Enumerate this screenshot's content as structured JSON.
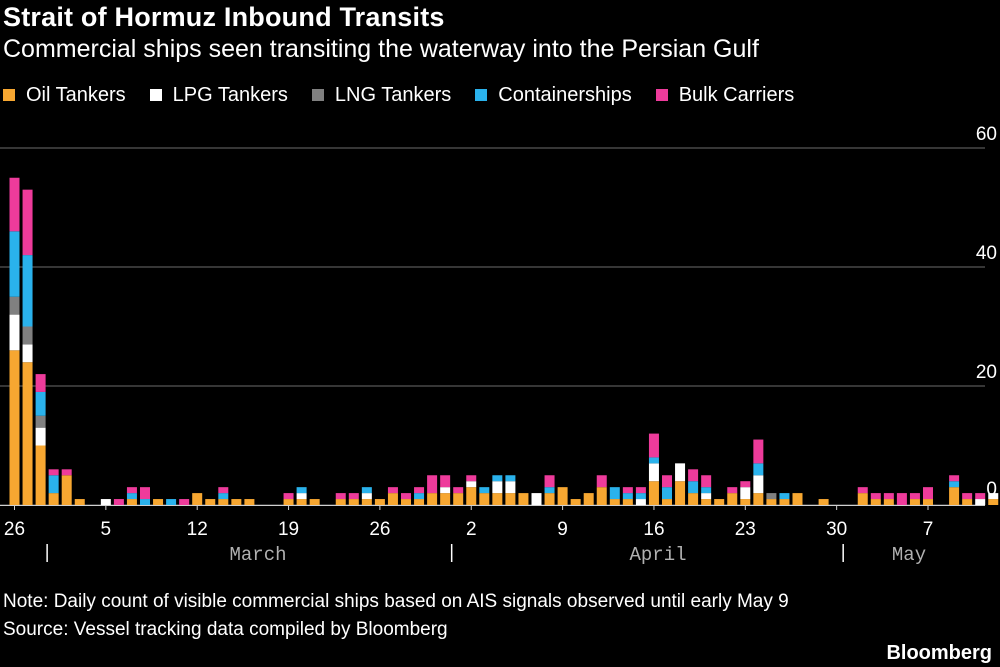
{
  "header": {
    "title": "Strait of Hormuz Inbound Transits",
    "subtitle": "Commercial ships seen transiting the waterway into the Persian Gulf"
  },
  "footer": {
    "note": "Note: Daily count of visible commercial ships based on AIS signals observed until early May 9",
    "source": "Source: Vessel tracking data compiled by Bloomberg",
    "logo": "Bloomberg"
  },
  "chart_data": {
    "type": "bar",
    "stacked": true,
    "first_date": "2026-02-26",
    "ylim": [
      0,
      60
    ],
    "yticks": [
      "60",
      "40",
      "20",
      "0"
    ],
    "ytick_values": [
      60,
      40,
      20,
      0
    ],
    "grid": true,
    "legend_position": "top-left",
    "xtick_labels": [
      "26",
      "5",
      "12",
      "19",
      "26",
      "2",
      "9",
      "16",
      "23",
      "30",
      "7"
    ],
    "xtick_dates": [
      "2026-02-26",
      "2026-03-05",
      "2026-03-12",
      "2026-03-19",
      "2026-03-26",
      "2026-04-02",
      "2026-04-09",
      "2026-04-16",
      "2026-04-23",
      "2026-04-30",
      "2026-05-07"
    ],
    "month_labels": [
      "March",
      "April",
      "May"
    ],
    "month_dates": [
      "2026-03-01",
      "2026-04-01",
      "2026-05-01"
    ],
    "series": [
      {
        "name": "Oil Tankers",
        "color": "#f7a731",
        "values": [
          26,
          24,
          10,
          2,
          5,
          1,
          0,
          0,
          0,
          1,
          0,
          1,
          0,
          0,
          2,
          1,
          1,
          1,
          1,
          0,
          0,
          1,
          1,
          1,
          0,
          1,
          1,
          1,
          1,
          2,
          1,
          1,
          2,
          2,
          2,
          3,
          2,
          2,
          2,
          2,
          0,
          2,
          3,
          1,
          2,
          3,
          1,
          1,
          0,
          4,
          1,
          4,
          2,
          1,
          1,
          2,
          1,
          2,
          1,
          1,
          2,
          0,
          1,
          0,
          0,
          2,
          1,
          1,
          0,
          1,
          1,
          0,
          3,
          1,
          0,
          1,
          0,
          0,
          0,
          0,
          0,
          0
        ]
      },
      {
        "name": "LPG Tankers",
        "color": "#ffffff",
        "values": [
          6,
          3,
          3,
          0,
          0,
          0,
          0,
          1,
          0,
          0,
          0,
          0,
          0,
          0,
          0,
          0,
          0,
          0,
          0,
          0,
          0,
          0,
          1,
          0,
          0,
          0,
          0,
          1,
          0,
          0,
          0,
          0,
          0,
          1,
          0,
          1,
          0,
          2,
          2,
          0,
          2,
          0,
          0,
          0,
          0,
          0,
          0,
          0,
          1,
          3,
          0,
          3,
          0,
          1,
          0,
          0,
          2,
          3,
          0,
          0,
          0,
          0,
          0,
          0,
          0,
          0,
          0,
          0,
          0,
          0,
          0,
          0,
          0,
          0,
          1,
          1,
          0,
          0,
          0,
          0,
          0,
          0
        ]
      },
      {
        "name": "LNG Tankers",
        "color": "#808080",
        "values": [
          3,
          3,
          2,
          0,
          0,
          0,
          0,
          0,
          0,
          0,
          0,
          0,
          0,
          0,
          0,
          0,
          0,
          0,
          0,
          0,
          0,
          0,
          0,
          0,
          0,
          0,
          0,
          0,
          0,
          0,
          0,
          0,
          0,
          0,
          0,
          0,
          0,
          0,
          0,
          0,
          0,
          0,
          0,
          0,
          0,
          0,
          0,
          0,
          0,
          0,
          0,
          0,
          0,
          0,
          0,
          0,
          0,
          0,
          1,
          0,
          0,
          0,
          0,
          0,
          0,
          0,
          0,
          0,
          0,
          0,
          0,
          0,
          0,
          0,
          0,
          0,
          0,
          0,
          0,
          0,
          0,
          0
        ]
      },
      {
        "name": "Containerships",
        "color": "#2ab2ec",
        "values": [
          11,
          12,
          4,
          3,
          0,
          0,
          0,
          0,
          0,
          1,
          1,
          0,
          1,
          0,
          0,
          0,
          1,
          0,
          0,
          0,
          0,
          0,
          1,
          0,
          0,
          0,
          0,
          1,
          0,
          0,
          0,
          1,
          0,
          0,
          0,
          0,
          1,
          1,
          1,
          0,
          0,
          1,
          0,
          0,
          0,
          0,
          2,
          1,
          1,
          1,
          2,
          0,
          2,
          1,
          0,
          0,
          0,
          2,
          0,
          1,
          0,
          0,
          0,
          0,
          0,
          0,
          0,
          0,
          0,
          0,
          0,
          0,
          1,
          0,
          0,
          0,
          0,
          1,
          0,
          0,
          0,
          0
        ]
      },
      {
        "name": "Bulk Carriers",
        "color": "#ee3b9b",
        "values": [
          9,
          11,
          3,
          1,
          1,
          0,
          0,
          0,
          1,
          1,
          2,
          0,
          0,
          1,
          0,
          0,
          1,
          0,
          0,
          0,
          0,
          1,
          0,
          0,
          0,
          1,
          1,
          0,
          0,
          1,
          1,
          1,
          3,
          2,
          1,
          1,
          0,
          0,
          0,
          0,
          0,
          2,
          0,
          0,
          0,
          2,
          0,
          1,
          1,
          4,
          2,
          0,
          2,
          2,
          0,
          1,
          1,
          4,
          0,
          0,
          0,
          0,
          0,
          0,
          0,
          1,
          1,
          1,
          2,
          1,
          2,
          0,
          1,
          1,
          1,
          0,
          0,
          0,
          0,
          0,
          0,
          0
        ]
      }
    ]
  }
}
